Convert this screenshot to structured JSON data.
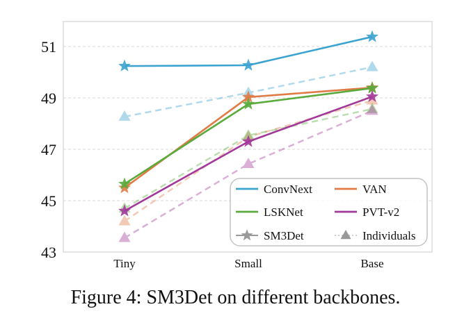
{
  "caption": "Figure 4: SM3Det on different backbones.",
  "chart_data": {
    "type": "line",
    "title": "",
    "xlabel": "",
    "ylabel": "",
    "categories": [
      "Tiny",
      "Small",
      "Base"
    ],
    "ylim": [
      42.9,
      51.9
    ],
    "yticks": [
      43,
      45,
      47,
      49,
      51
    ],
    "grid": true,
    "legend_position": "bottom-right",
    "series": [
      {
        "name": "ConvNext",
        "kind": "SM3Det",
        "color": "#3ba3cf",
        "values": [
          50.24,
          50.27,
          51.38
        ]
      },
      {
        "name": "VAN",
        "kind": "SM3Det",
        "color": "#e07b45",
        "values": [
          45.5,
          49.03,
          49.4
        ]
      },
      {
        "name": "LSKNet",
        "kind": "SM3Det",
        "color": "#5aaa3c",
        "values": [
          45.65,
          48.76,
          49.38
        ]
      },
      {
        "name": "PVT-v2",
        "kind": "SM3Det",
        "color": "#a2399a",
        "values": [
          44.6,
          47.3,
          49.05
        ]
      },
      {
        "name": "ConvNext",
        "kind": "Individuals",
        "color": "#3ba3cf",
        "values": [
          48.27,
          49.2,
          50.2
        ]
      },
      {
        "name": "VAN",
        "kind": "Individuals",
        "color": "#e07b45",
        "values": [
          44.2,
          47.48,
          48.9
        ]
      },
      {
        "name": "LSKNet",
        "kind": "Individuals",
        "color": "#5aaa3c",
        "values": [
          44.7,
          47.54,
          48.57
        ]
      },
      {
        "name": "PVT-v2",
        "kind": "Individuals",
        "color": "#a2399a",
        "values": [
          43.55,
          46.43,
          48.5
        ]
      }
    ],
    "legend": [
      {
        "label": "ConvNext",
        "type": "line",
        "color": "#3ba3cf"
      },
      {
        "label": "VAN",
        "type": "line",
        "color": "#e07b45"
      },
      {
        "label": "LSKNet",
        "type": "line",
        "color": "#5aaa3c"
      },
      {
        "label": "PVT-v2",
        "type": "line",
        "color": "#a2399a"
      },
      {
        "label": "SM3Det",
        "type": "star-solid",
        "color": "#999999"
      },
      {
        "label": "Individuals",
        "type": "triangle-dotted",
        "color": "#999999"
      }
    ]
  }
}
